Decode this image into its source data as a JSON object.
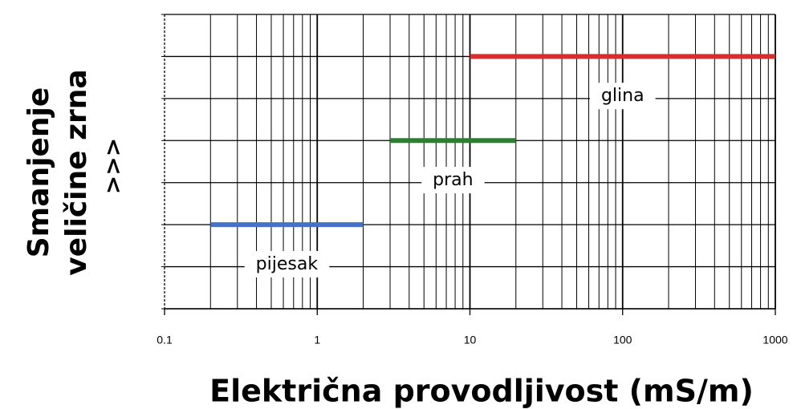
{
  "chart_data": {
    "type": "range-bar",
    "xlabel": "Električna provodljivost (mS/m)",
    "ylabel": [
      "Smanjenje",
      "veličine zrna",
      ">>>"
    ],
    "xscale": "log",
    "xlim": [
      0.1,
      1000
    ],
    "xticks": [
      0.1,
      1,
      10,
      100,
      1000
    ],
    "xminorticks": [
      0.2,
      0.3,
      0.4,
      0.5,
      0.6,
      0.7,
      0.8,
      0.9,
      2,
      3,
      4,
      5,
      6,
      7,
      8,
      9,
      20,
      30,
      40,
      50,
      60,
      70,
      80,
      90,
      200,
      300,
      400,
      500,
      600,
      700,
      800,
      900
    ],
    "ylim": [
      0,
      7
    ],
    "yticks": [
      0,
      1,
      2,
      3,
      4,
      5,
      6,
      7
    ],
    "grid": true,
    "series": [
      {
        "name": "pijesak",
        "color": "#4472c4",
        "range": [
          0.2,
          2
        ],
        "level": 2
      },
      {
        "name": "prah",
        "color": "#2e7d32",
        "range": [
          3,
          20
        ],
        "level": 4
      },
      {
        "name": "glina",
        "color": "#d32f2f",
        "range": [
          10,
          1000
        ],
        "level": 6
      }
    ]
  }
}
